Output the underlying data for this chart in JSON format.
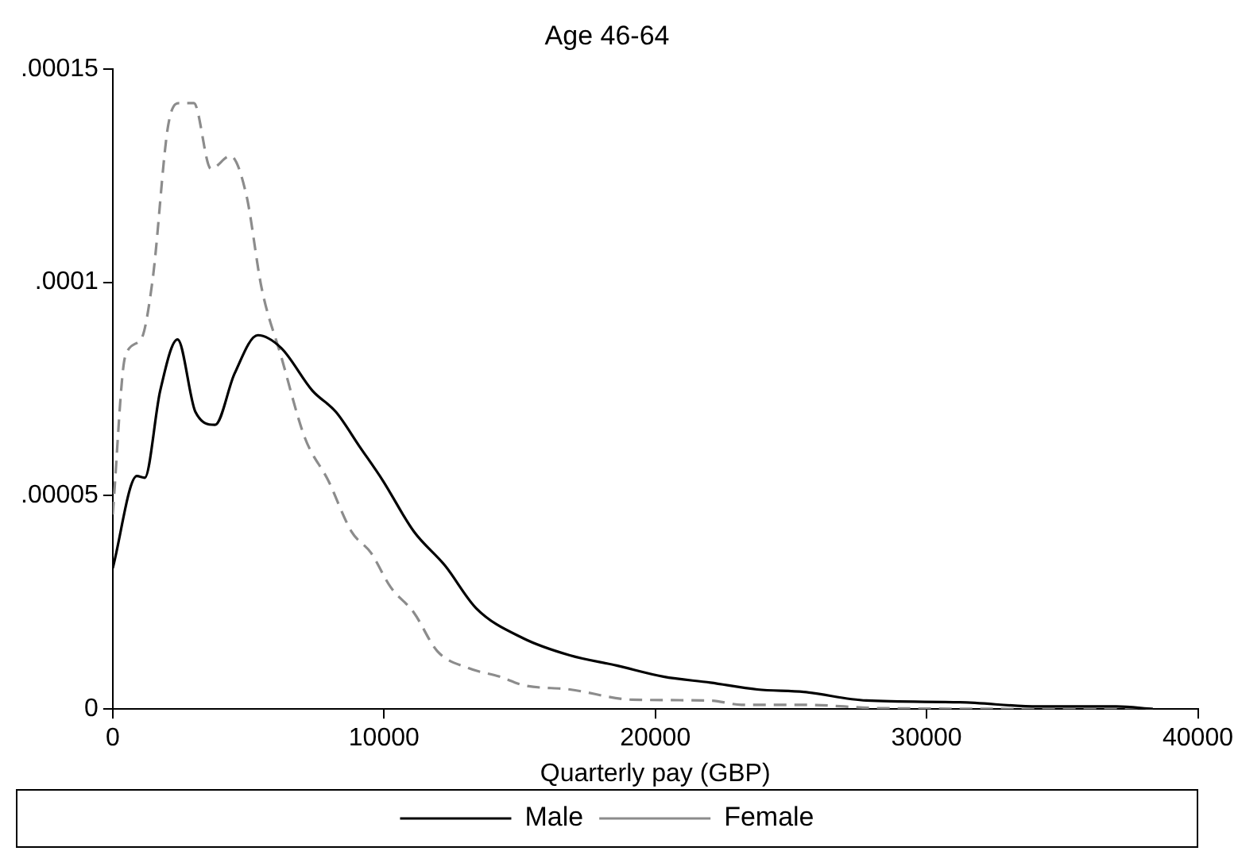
{
  "chart_data": {
    "type": "line",
    "title": "Age 46-64",
    "xlabel": "Quarterly pay (GBP)",
    "grid": false,
    "legend": "bottom",
    "marker": "none",
    "xlim": [
      0,
      40000
    ],
    "xticks": [
      0,
      10000,
      20000,
      30000,
      40000
    ],
    "ylim": [
      0,
      0.00015
    ],
    "yticks": [
      0,
      {
        "value": 5e-05,
        "label": ".00005"
      },
      {
        "value": 0.0001,
        "label": ".0001"
      },
      {
        "value": 0.00015,
        "label": ".00015"
      }
    ],
    "series": [
      {
        "name": "Male",
        "color": "#000000",
        "line_style": "solid",
        "x": [
          0,
          890,
          1180,
          1750,
          2390,
          3050,
          3770,
          4490,
          5350,
          6210,
          7360,
          8230,
          9090,
          9950,
          11100,
          12250,
          13400,
          15130,
          16850,
          18580,
          20300,
          22030,
          23760,
          25480,
          27780,
          31230,
          34110,
          36990,
          38340
        ],
        "values": [
          3.3e-05,
          5.46e-05,
          5.42e-05,
          7.46e-05,
          8.66e-05,
          6.96e-05,
          6.66e-05,
          7.86e-05,
          8.76e-05,
          8.46e-05,
          7.46e-05,
          6.96e-05,
          6.16e-05,
          5.36e-05,
          4.16e-05,
          3.36e-05,
          2.36e-05,
          1.66e-05,
          1.26e-05,
          1.02e-05,
          7.6e-06,
          6.2e-06,
          4.6e-06,
          4e-06,
          2e-06,
          1.6e-06,
          6e-07,
          6e-07,
          0
        ]
      },
      {
        "name": "Female",
        "color": "#8c8c8c",
        "line_style": "dashed",
        "x": [
          0,
          460,
          1040,
          1470,
          2040,
          2470,
          2990,
          3620,
          4340,
          4920,
          5490,
          6210,
          7080,
          7940,
          8800,
          9520,
          10240,
          11100,
          11960,
          13110,
          14260,
          15130,
          16850,
          19150,
          22030,
          23180,
          25480,
          28360,
          38340
        ],
        "values": [
          4.56e-05,
          8.26e-05,
          8.66e-05,
          0.0001006,
          0.0001366,
          0.000142,
          0.000142,
          0.0001266,
          0.0001296,
          0.0001206,
          9.86e-05,
          8.26e-05,
          6.36e-05,
          5.36e-05,
          4.16e-05,
          3.66e-05,
          2.86e-05,
          2.26e-05,
          1.36e-05,
          9.6e-06,
          7.6e-06,
          5.6e-06,
          4.6e-06,
          2.2e-06,
          2e-06,
          1e-06,
          1e-06,
          2e-07,
          0
        ]
      }
    ]
  }
}
